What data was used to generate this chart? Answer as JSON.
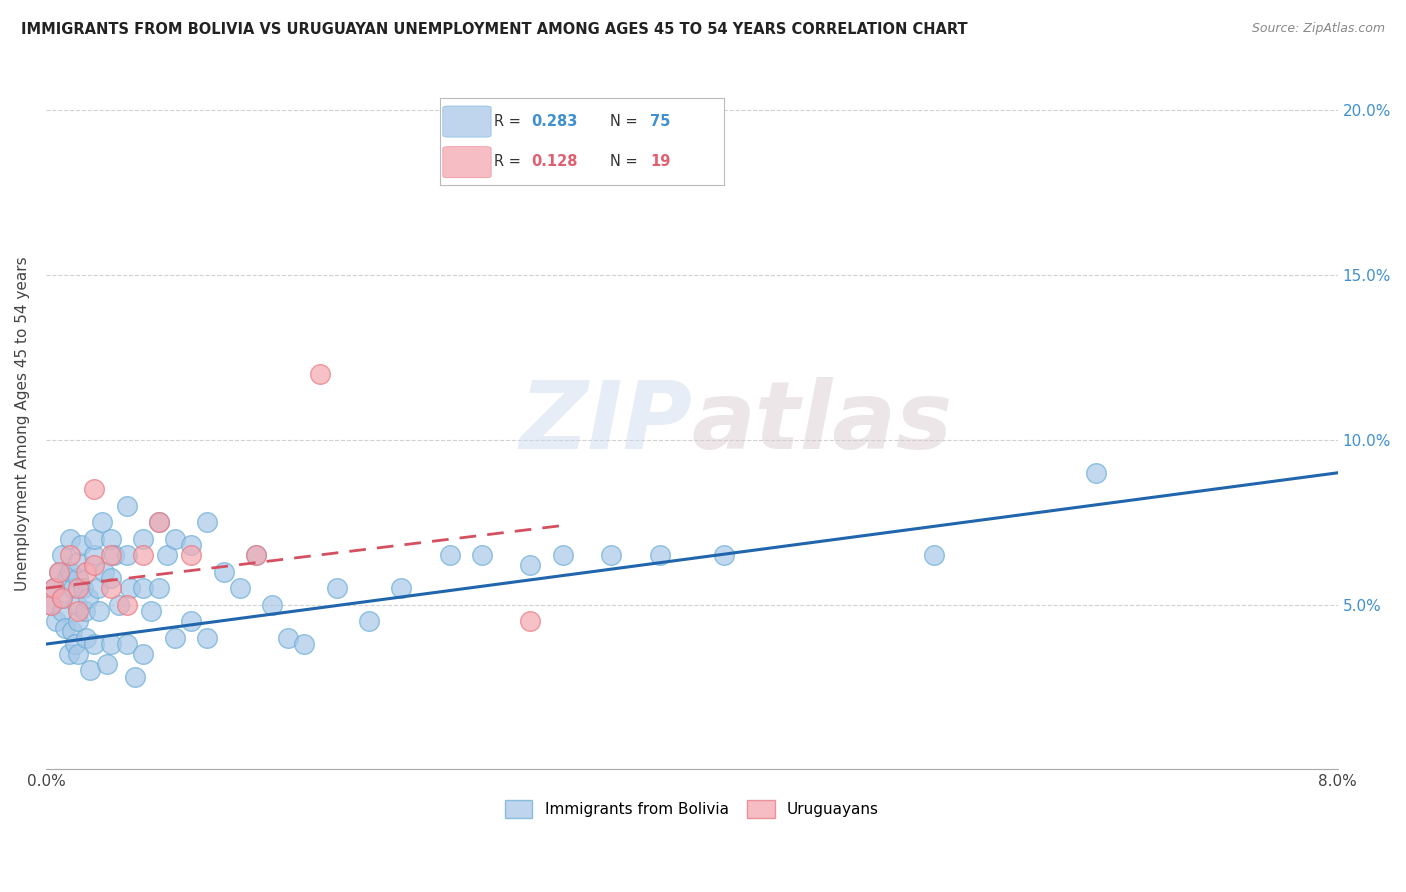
{
  "title": "IMMIGRANTS FROM BOLIVIA VS URUGUAYAN UNEMPLOYMENT AMONG AGES 45 TO 54 YEARS CORRELATION CHART",
  "source": "Source: ZipAtlas.com",
  "ylabel": "Unemployment Among Ages 45 to 54 years",
  "xlim": [
    0.0,
    0.08
  ],
  "ylim": [
    0.0,
    0.21
  ],
  "watermark": "ZIPatlas",
  "legend_r1": "0.283",
  "legend_n1": "75",
  "legend_r2": "0.128",
  "legend_n2": "19",
  "blue_color": "#a8c8e8",
  "blue_edge_color": "#6baed6",
  "pink_color": "#f4a8b0",
  "pink_edge_color": "#e87880",
  "blue_line_color": "#2166ac",
  "pink_line_color": "#d45060",
  "blue_text_color": "#4090d0",
  "pink_text_color": "#e06070",
  "bolivia_x": [
    0.0003,
    0.0005,
    0.0006,
    0.0008,
    0.001,
    0.001,
    0.001,
    0.0012,
    0.0013,
    0.0014,
    0.0015,
    0.0015,
    0.0016,
    0.0017,
    0.0018,
    0.0019,
    0.002,
    0.002,
    0.002,
    0.002,
    0.0022,
    0.0023,
    0.0024,
    0.0025,
    0.0026,
    0.0027,
    0.003,
    0.003,
    0.003,
    0.0032,
    0.0033,
    0.0035,
    0.0036,
    0.0038,
    0.004,
    0.004,
    0.004,
    0.0042,
    0.0045,
    0.005,
    0.005,
    0.005,
    0.0052,
    0.0055,
    0.006,
    0.006,
    0.006,
    0.0065,
    0.007,
    0.007,
    0.0075,
    0.008,
    0.008,
    0.009,
    0.009,
    0.01,
    0.01,
    0.011,
    0.012,
    0.013,
    0.014,
    0.015,
    0.016,
    0.018,
    0.02,
    0.022,
    0.025,
    0.027,
    0.03,
    0.032,
    0.035,
    0.038,
    0.042,
    0.055,
    0.065
  ],
  "bolivia_y": [
    0.05,
    0.055,
    0.045,
    0.06,
    0.048,
    0.052,
    0.065,
    0.043,
    0.058,
    0.035,
    0.06,
    0.07,
    0.042,
    0.055,
    0.038,
    0.05,
    0.058,
    0.063,
    0.045,
    0.035,
    0.068,
    0.055,
    0.048,
    0.04,
    0.052,
    0.03,
    0.065,
    0.07,
    0.038,
    0.055,
    0.048,
    0.075,
    0.06,
    0.032,
    0.07,
    0.058,
    0.038,
    0.065,
    0.05,
    0.08,
    0.065,
    0.038,
    0.055,
    0.028,
    0.07,
    0.055,
    0.035,
    0.048,
    0.075,
    0.055,
    0.065,
    0.07,
    0.04,
    0.068,
    0.045,
    0.075,
    0.04,
    0.06,
    0.055,
    0.065,
    0.05,
    0.04,
    0.038,
    0.055,
    0.045,
    0.055,
    0.065,
    0.065,
    0.062,
    0.065,
    0.065,
    0.065,
    0.065,
    0.065,
    0.09
  ],
  "uruguay_x": [
    0.0003,
    0.0005,
    0.0008,
    0.001,
    0.0015,
    0.002,
    0.002,
    0.0025,
    0.003,
    0.003,
    0.004,
    0.004,
    0.005,
    0.006,
    0.007,
    0.009,
    0.013,
    0.017,
    0.03
  ],
  "uruguay_y": [
    0.05,
    0.055,
    0.06,
    0.052,
    0.065,
    0.055,
    0.048,
    0.06,
    0.062,
    0.085,
    0.065,
    0.055,
    0.05,
    0.065,
    0.075,
    0.065,
    0.065,
    0.12,
    0.045
  ],
  "blue_line_x0": 0.0,
  "blue_line_x1": 0.08,
  "blue_line_y0": 0.038,
  "blue_line_y1": 0.09,
  "pink_line_x0": 0.0,
  "pink_line_x1": 0.032,
  "pink_line_y0": 0.055,
  "pink_line_y1": 0.074
}
